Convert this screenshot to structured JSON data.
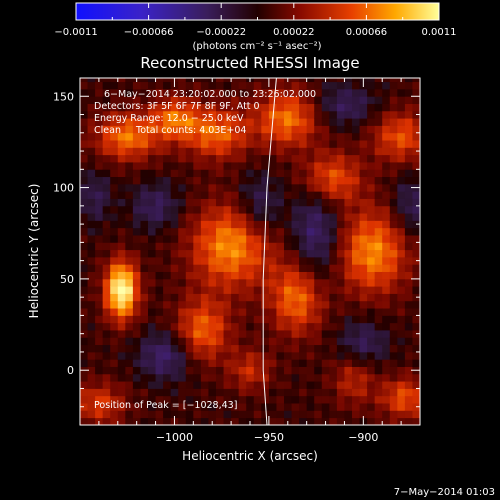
{
  "chart_data": {
    "type": "heatmap",
    "title": "Reconstructed RHESSI Image",
    "xlabel": "Heliocentric X (arcsec)",
    "ylabel": "Heliocentric Y (arcsec)",
    "xlim": [
      -1050,
      -870
    ],
    "ylim": [
      -30,
      160
    ],
    "x_ticks": [
      -1000,
      -950,
      -900
    ],
    "x_tick_labels": [
      "−1000",
      "−950",
      "−900"
    ],
    "y_ticks": [
      0,
      50,
      100,
      150
    ],
    "y_tick_labels": [
      "0",
      "50",
      "100",
      "150"
    ],
    "colorbar": {
      "min": -0.0011,
      "max": 0.0011,
      "ticks": [
        -0.0011,
        -0.00066,
        -0.00022,
        0.00022,
        0.00066,
        0.0011
      ],
      "tick_labels": [
        "−0.0011",
        "−0.00066",
        "−0.00022",
        "0.00022",
        "0.00066",
        "0.0011"
      ],
      "units_label": "(photons cm⁻² s⁻¹ asec⁻²)"
    },
    "annotations": [
      "6−May−2014 23:20:02.000 to 23:26:02.000",
      "Detectors: 3F 5F 6F 7F 8F 9F, Att 0",
      "Energy Range: 12.0 − 25.0 keV",
      "Clean     Total counts: 4.03E+04"
    ],
    "peak_label": "Position of Peak = [−1028,43]",
    "peak": [
      -1028,
      43
    ],
    "limb_line": [
      [
        -946,
        160
      ],
      [
        -951,
        100
      ],
      [
        -953,
        50
      ],
      [
        -953,
        0
      ],
      [
        -951,
        -30
      ]
    ],
    "sources": [
      {
        "x": -1028,
        "y": 44,
        "sx": 6,
        "sy": 11,
        "amp": 1.0
      },
      {
        "x": -1025,
        "y": 128,
        "sx": 12,
        "sy": 9,
        "amp": 0.55
      },
      {
        "x": -1000,
        "y": 138,
        "sx": 9,
        "sy": 8,
        "amp": 0.48
      },
      {
        "x": -978,
        "y": 130,
        "sx": 12,
        "sy": 10,
        "amp": 0.52
      },
      {
        "x": -970,
        "y": 68,
        "sx": 15,
        "sy": 16,
        "amp": 0.62
      },
      {
        "x": -985,
        "y": 22,
        "sx": 10,
        "sy": 12,
        "amp": 0.5
      },
      {
        "x": -940,
        "y": 138,
        "sx": 12,
        "sy": 11,
        "amp": 0.55
      },
      {
        "x": -935,
        "y": 40,
        "sx": 10,
        "sy": 14,
        "amp": 0.55
      },
      {
        "x": -917,
        "y": 105,
        "sx": 11,
        "sy": 10,
        "amp": 0.5
      },
      {
        "x": -895,
        "y": 65,
        "sx": 13,
        "sy": 16,
        "amp": 0.6
      },
      {
        "x": -880,
        "y": 128,
        "sx": 11,
        "sy": 10,
        "amp": 0.45
      },
      {
        "x": -878,
        "y": -15,
        "sx": 9,
        "sy": 8,
        "amp": 0.45
      },
      {
        "x": -1040,
        "y": -18,
        "sx": 10,
        "sy": 8,
        "amp": 0.38
      },
      {
        "x": -960,
        "y": 0,
        "sx": 8,
        "sy": 8,
        "amp": 0.32
      },
      {
        "x": -905,
        "y": -5,
        "sx": 8,
        "sy": 10,
        "amp": 0.3
      },
      {
        "x": -1042,
        "y": 95,
        "sx": 6,
        "sy": 10,
        "amp": -0.25
      },
      {
        "x": -1010,
        "y": 90,
        "sx": 9,
        "sy": 9,
        "amp": -0.3
      },
      {
        "x": -1005,
        "y": 8,
        "sx": 10,
        "sy": 9,
        "amp": -0.38
      },
      {
        "x": -955,
        "y": 90,
        "sx": 8,
        "sy": 12,
        "amp": -0.32
      },
      {
        "x": -925,
        "y": 75,
        "sx": 9,
        "sy": 20,
        "amp": -0.38
      },
      {
        "x": -910,
        "y": 145,
        "sx": 12,
        "sy": 8,
        "amp": -0.3
      },
      {
        "x": -900,
        "y": 15,
        "sx": 9,
        "sy": 9,
        "amp": -0.3
      },
      {
        "x": -875,
        "y": 90,
        "sx": 7,
        "sy": 12,
        "amp": -0.28
      }
    ]
  },
  "footer": {
    "date": "7−May−2014 01:03"
  },
  "colors": {
    "background": "#000000",
    "foreground": "#ffffff",
    "limb_line": "#ffffff"
  }
}
